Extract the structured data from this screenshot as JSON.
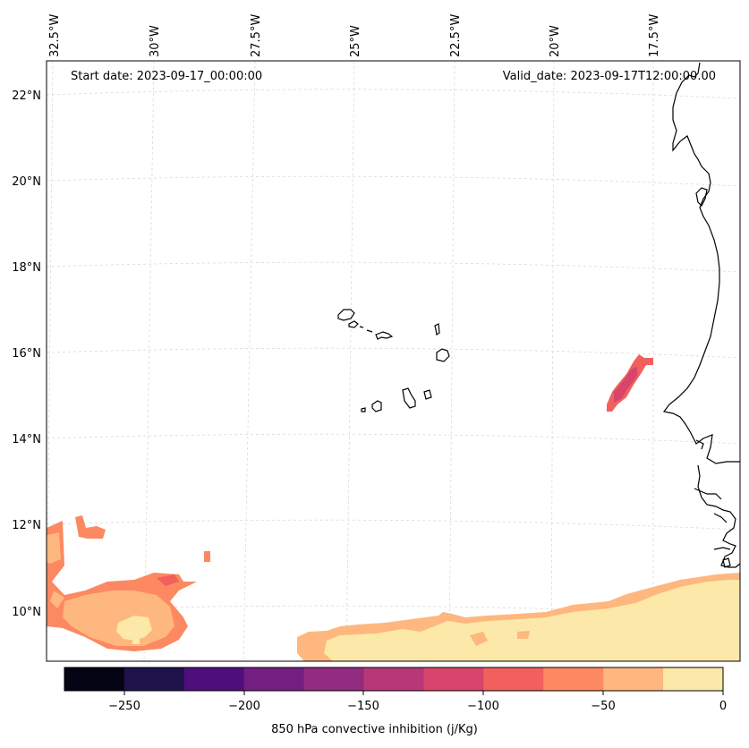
{
  "map": {
    "start_date_label": "Start date: 2023-09-17_00:00:00",
    "valid_date_label": "Valid_date: 2023-09-17T12:00:00.00",
    "lon_labels": [
      "32.5°W",
      "30°W",
      "27.5°W",
      "25°W",
      "22.5°W",
      "20°W",
      "17.5°W"
    ],
    "lat_labels": [
      "22°N",
      "20°N",
      "18°N",
      "16°N",
      "14°N",
      "12°N",
      "10°N"
    ],
    "extent": {
      "lon_min": -33.0,
      "lon_max": -15.5,
      "lat_min": 8.8,
      "lat_max": 22.7
    }
  },
  "colorbar": {
    "label": "850 hPa convective inhibition (j/Kg)",
    "ticks": [
      "−250",
      "−200",
      "−150",
      "−100",
      "−50",
      "0"
    ],
    "levels": [
      -275,
      -250,
      -225,
      -200,
      -175,
      -150,
      -125,
      -100,
      -75,
      -50,
      -25,
      0
    ],
    "colors": [
      "#050415",
      "#20124a",
      "#4e0f7b",
      "#721f81",
      "#932b80",
      "#b73779",
      "#d8456c",
      "#f1605d",
      "#fc8961",
      "#feb77e",
      "#fce8a8"
    ]
  }
}
